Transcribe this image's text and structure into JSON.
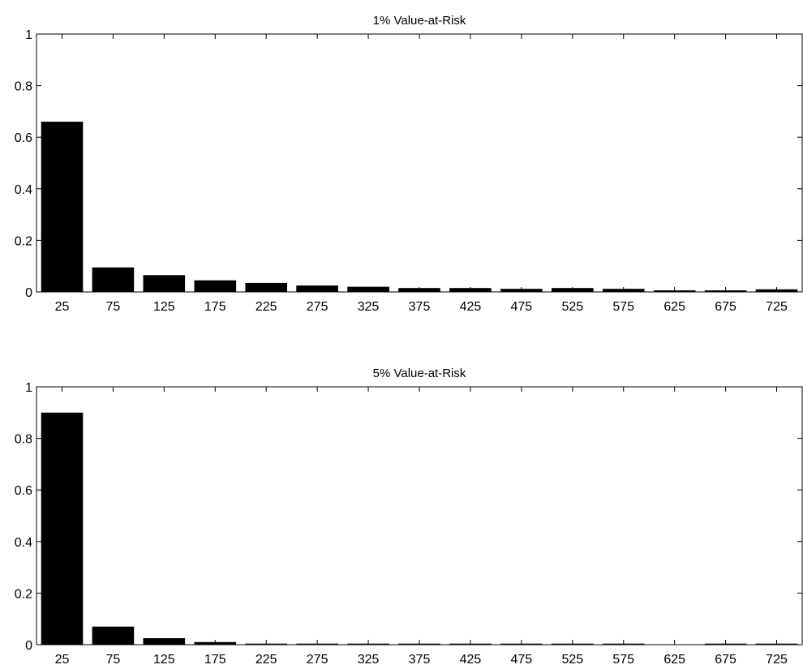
{
  "chart_data": [
    {
      "type": "bar",
      "title": "1% Value-at-Risk",
      "categories": [
        "25",
        "75",
        "125",
        "175",
        "225",
        "275",
        "325",
        "375",
        "425",
        "475",
        "525",
        "575",
        "625",
        "675",
        "725"
      ],
      "values": [
        0.66,
        0.095,
        0.065,
        0.045,
        0.035,
        0.025,
        0.02,
        0.015,
        0.015,
        0.012,
        0.015,
        0.012,
        0.006,
        0.006,
        0.01
      ],
      "xlabel": "",
      "ylabel": "",
      "ylim": [
        0,
        1
      ],
      "yticks": [
        "0",
        "0.2",
        "0.4",
        "0.6",
        "0.8",
        "1"
      ],
      "grid": false,
      "bar_color": "#000000"
    },
    {
      "type": "bar",
      "title": "5% Value-at-Risk",
      "categories": [
        "25",
        "75",
        "125",
        "175",
        "225",
        "275",
        "325",
        "375",
        "425",
        "475",
        "525",
        "575",
        "625",
        "675",
        "725"
      ],
      "values": [
        0.9,
        0.07,
        0.025,
        0.01,
        0.004,
        0.004,
        0.004,
        0.004,
        0.004,
        0.004,
        0.004,
        0.004,
        0.001,
        0.004,
        0.004
      ],
      "xlabel": "",
      "ylabel": "",
      "ylim": [
        0,
        1
      ],
      "yticks": [
        "0",
        "0.2",
        "0.4",
        "0.6",
        "0.8",
        "1"
      ],
      "grid": false,
      "bar_color": "#000000"
    }
  ]
}
